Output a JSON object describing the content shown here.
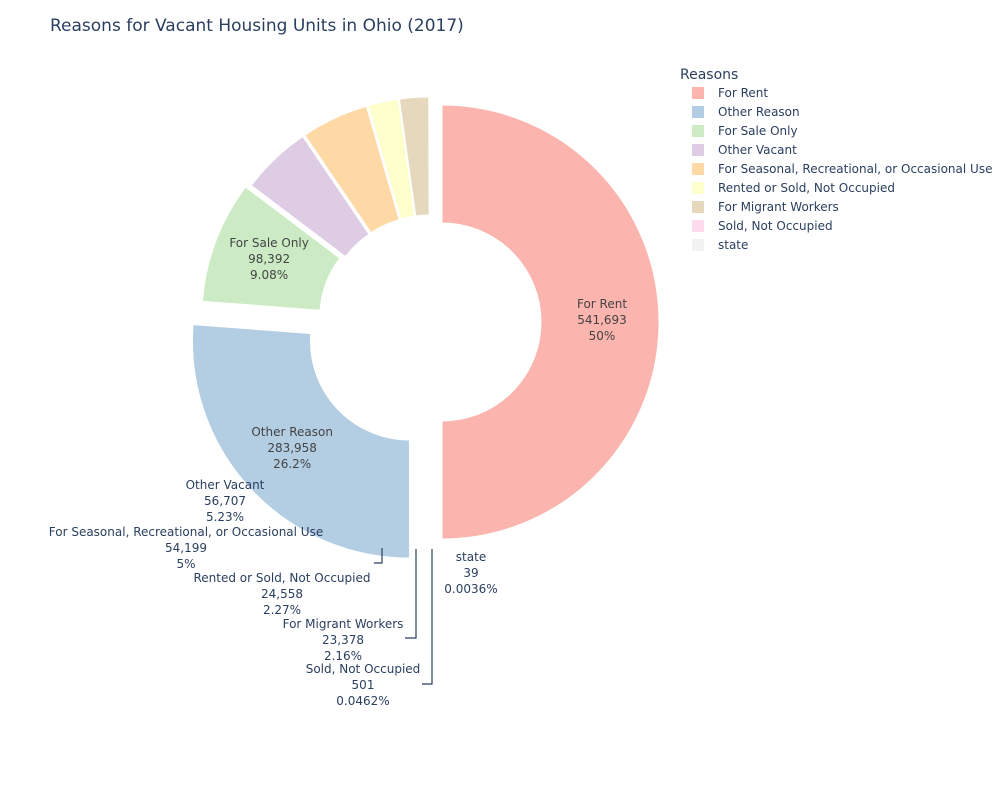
{
  "chart_data": {
    "type": "pie",
    "hole": true,
    "title": "Reasons for Vacant Housing Units in Ohio (2017)",
    "legend_title": "Reasons",
    "legend_position": "top-right",
    "slices": [
      {
        "label": "For Rent",
        "value": 541693,
        "value_text": "541,693",
        "percent_text": "50%",
        "color": "#fbb4ae"
      },
      {
        "label": "Other Reason",
        "value": 283958,
        "value_text": "283,958",
        "percent_text": "26.2%",
        "color": "#b3cde3"
      },
      {
        "label": "For Sale Only",
        "value": 98392,
        "value_text": "98,392",
        "percent_text": "9.08%",
        "color": "#ccebc5"
      },
      {
        "label": "Other Vacant",
        "value": 56707,
        "value_text": "56,707",
        "percent_text": "5.23%",
        "color": "#decbe4"
      },
      {
        "label": "For Seasonal, Recreational, or Occasional Use",
        "value": 54199,
        "value_text": "54,199",
        "percent_text": "5%",
        "color": "#fed9a6"
      },
      {
        "label": "Rented or Sold, Not Occupied",
        "value": 24558,
        "value_text": "24,558",
        "percent_text": "2.27%",
        "color": "#ffffcc"
      },
      {
        "label": "For Migrant Workers",
        "value": 23378,
        "value_text": "23,378",
        "percent_text": "2.16%",
        "color": "#e5d8bd"
      },
      {
        "label": "Sold, Not Occupied",
        "value": 501,
        "value_text": "501",
        "percent_text": "0.0462%",
        "color": "#fddaec"
      },
      {
        "label": "state",
        "value": 39,
        "value_text": "39",
        "percent_text": "0.0036%",
        "color": "#f2f2f2"
      }
    ]
  }
}
